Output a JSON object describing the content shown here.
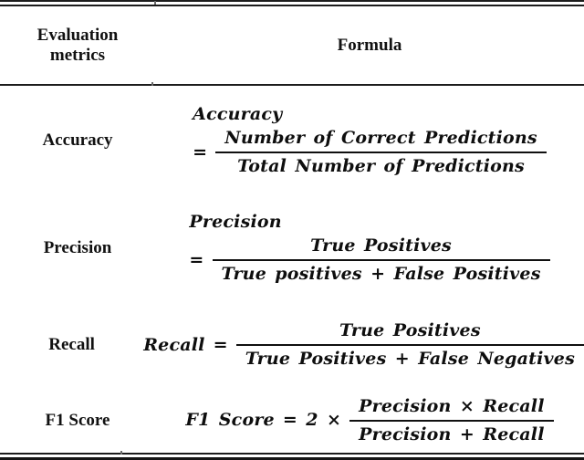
{
  "colors": {
    "background": "#ffffff",
    "text": "#111111",
    "rule": "#1c1c1c"
  },
  "table": {
    "header": {
      "metric": "Evaluation metrics",
      "formula": "Formula"
    },
    "rows": [
      {
        "metric": "Accuracy",
        "formula": {
          "lhs": "Accuracy",
          "eq": "=",
          "numerator": "Number of Correct Predictions",
          "denominator": "Total Number of Predictions"
        }
      },
      {
        "metric": "Precision",
        "formula": {
          "lhs": "Precision",
          "eq": "=",
          "numerator": "True Positives",
          "denominator": "True positives + False Positives"
        }
      },
      {
        "metric": "Recall",
        "formula": {
          "lhs": "Recall",
          "eq": "=",
          "numerator": "True Positives",
          "denominator": "True Positives + False Negatives"
        }
      },
      {
        "metric": "F1 Score",
        "formula": {
          "lhs": "F1 Score",
          "eq": "= 2 ×",
          "numerator": "Precision × Recall",
          "denominator": "Precision + Recall"
        }
      }
    ]
  }
}
